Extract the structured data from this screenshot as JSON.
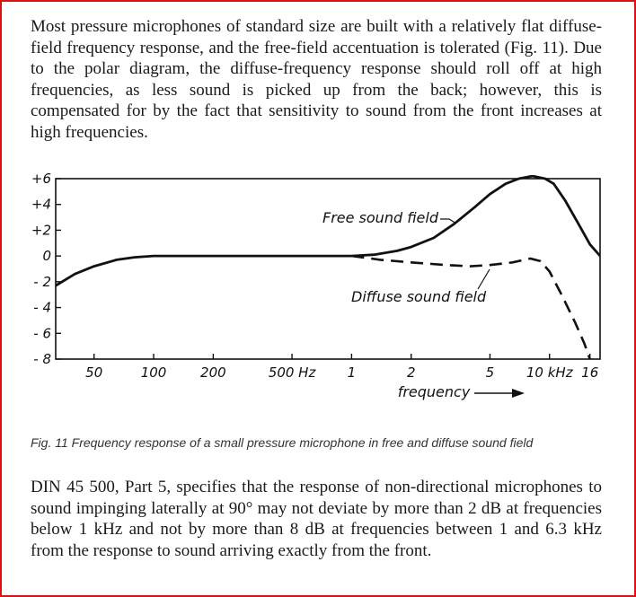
{
  "text": {
    "intro": "Most pressure microphones of standard size are built with a relatively flat diffuse-field frequency response, and the free-field accentuation is tolerated (Fig. 11). Due to the polar diagram, the diffuse-frequency response should roll off at high frequencies, as less sound is picked up from the back; however, this is compensated for by the fact that sensitivity to sound from the front increases at high frequencies.",
    "caption": "Fig. 11  Frequency response of a small pressure microphone in free and diffuse sound field",
    "outro": "DIN 45 500, Part 5, specifies that the response of non-directional microphones to sound impinging laterally at 90° may not deviate by more than 2 dB at frequencies below 1 kHz and not by more than 8 dB at frequencies between 1 and 6.3 kHz from the response to sound arriving exactly from the front."
  },
  "chart_data": {
    "type": "line",
    "xlabel": "frequency",
    "x_scale": "log",
    "xlim_hz": [
      32,
      18000
    ],
    "ylim": [
      -8,
      6
    ],
    "x_ticks": [
      {
        "hz": 50,
        "label": "50"
      },
      {
        "hz": 100,
        "label": "100"
      },
      {
        "hz": 200,
        "label": "200"
      },
      {
        "hz": 500,
        "label": "500  Hz"
      },
      {
        "hz": 1000,
        "label": "1"
      },
      {
        "hz": 2000,
        "label": "2"
      },
      {
        "hz": 5000,
        "label": "5"
      },
      {
        "hz": 10000,
        "label": "10 kHz"
      },
      {
        "hz": 16000,
        "label": "16"
      }
    ],
    "y_ticks": [
      {
        "value": 6,
        "label": "+6"
      },
      {
        "value": 4,
        "label": "+4"
      },
      {
        "value": 2,
        "label": "+2"
      },
      {
        "value": 0,
        "label": "0"
      },
      {
        "value": -2,
        "label": "- 2"
      },
      {
        "value": -4,
        "label": "- 4"
      },
      {
        "value": -6,
        "label": "- 6"
      },
      {
        "value": -8,
        "label": "- 8"
      }
    ],
    "series": [
      {
        "name": "Free sound field",
        "style": "solid",
        "points": [
          [
            32,
            -2.3
          ],
          [
            40,
            -1.4
          ],
          [
            50,
            -0.8
          ],
          [
            65,
            -0.3
          ],
          [
            80,
            -0.1
          ],
          [
            100,
            0
          ],
          [
            200,
            0
          ],
          [
            500,
            0
          ],
          [
            1000,
            0
          ],
          [
            1300,
            0.1
          ],
          [
            1700,
            0.4
          ],
          [
            2000,
            0.7
          ],
          [
            2600,
            1.4
          ],
          [
            3300,
            2.5
          ],
          [
            4200,
            3.8
          ],
          [
            5000,
            4.8
          ],
          [
            6000,
            5.6
          ],
          [
            7000,
            6.0
          ],
          [
            8200,
            6.2
          ],
          [
            9500,
            6.0
          ],
          [
            10500,
            5.6
          ],
          [
            12000,
            4.3
          ],
          [
            14000,
            2.5
          ],
          [
            16000,
            0.9
          ],
          [
            18000,
            0
          ]
        ]
      },
      {
        "name": "Diffuse sound field",
        "style": "dashed",
        "points": [
          [
            1000,
            0
          ],
          [
            1400,
            -0.3
          ],
          [
            2000,
            -0.5
          ],
          [
            3000,
            -0.7
          ],
          [
            4000,
            -0.8
          ],
          [
            5000,
            -0.7
          ],
          [
            6500,
            -0.5
          ],
          [
            8000,
            -0.2
          ],
          [
            9000,
            -0.4
          ],
          [
            10000,
            -1.2
          ],
          [
            11500,
            -3
          ],
          [
            13500,
            -5.2
          ],
          [
            15000,
            -6.8
          ],
          [
            16000,
            -8
          ]
        ]
      }
    ]
  }
}
